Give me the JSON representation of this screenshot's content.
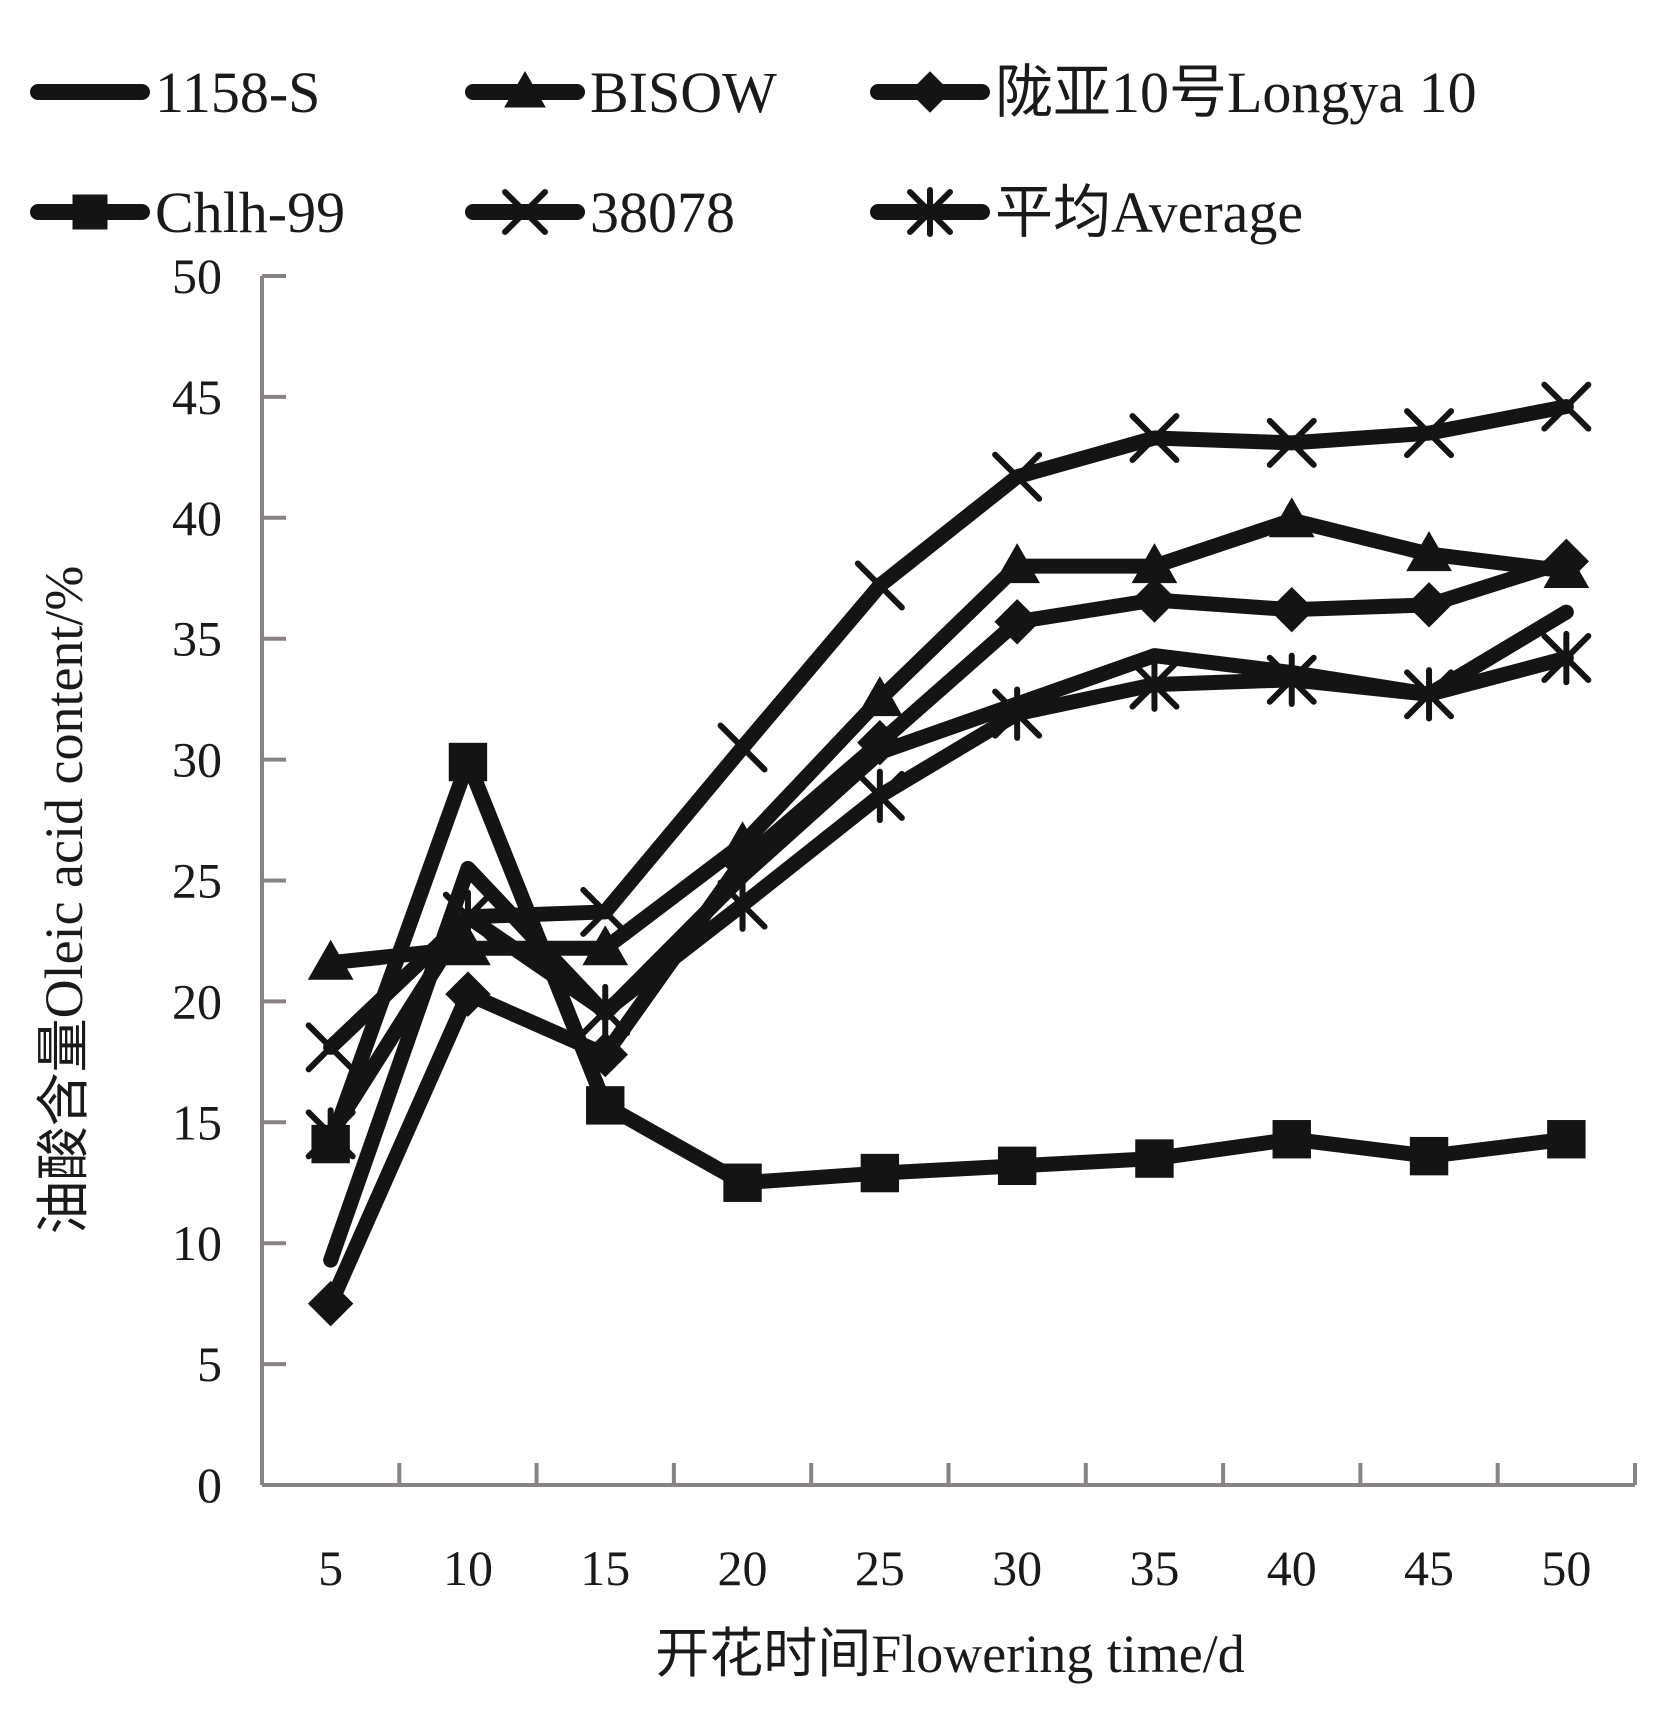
{
  "chart_data": {
    "type": "line",
    "title": "",
    "xlabel": "开花时间Flowering time/d",
    "ylabel": "油酸含量Oleic acid content/%",
    "x": [
      5,
      10,
      15,
      20,
      25,
      30,
      35,
      40,
      45,
      50
    ],
    "x_tick_labels": [
      "5",
      "10",
      "15",
      "20",
      "25",
      "30",
      "35",
      "40",
      "45",
      "50"
    ],
    "ylim": [
      0,
      50
    ],
    "y_ticks": [
      0,
      5,
      10,
      15,
      20,
      25,
      30,
      35,
      40,
      45,
      50
    ],
    "grid": false,
    "legend_position": "top",
    "series": [
      {
        "name": "1158-S",
        "marker": "none",
        "values": [
          9.3,
          25.5,
          19.5,
          25.2,
          30.3,
          32.3,
          34.3,
          33.6,
          32.7,
          36.1
        ]
      },
      {
        "name": "BISOW",
        "marker": "triangle",
        "values": [
          21.6,
          22.2,
          22.2,
          26.5,
          32.5,
          38.0,
          38.0,
          39.9,
          38.5,
          37.8
        ]
      },
      {
        "name": "陇亚10号Longya 10",
        "marker": "diamond",
        "values": [
          7.5,
          20.3,
          17.8,
          25.8,
          30.7,
          35.7,
          36.6,
          36.2,
          36.4,
          38.2
        ]
      },
      {
        "name": "Chlh-99",
        "marker": "square",
        "values": [
          14.1,
          29.9,
          15.7,
          12.5,
          12.9,
          13.2,
          13.5,
          14.3,
          13.6,
          14.3
        ]
      },
      {
        "name": "38078",
        "marker": "x",
        "values": [
          18.1,
          23.5,
          23.7,
          30.5,
          37.2,
          41.7,
          43.3,
          43.1,
          43.5,
          44.6
        ]
      },
      {
        "name": "平均Average",
        "marker": "asterisk",
        "values": [
          14.5,
          23.5,
          19.6,
          24.0,
          28.5,
          31.9,
          33.1,
          33.3,
          32.7,
          34.2
        ]
      }
    ],
    "colors": {
      "series": "#141414",
      "axis": "#8a8383",
      "text": "#1a1a1a"
    }
  }
}
